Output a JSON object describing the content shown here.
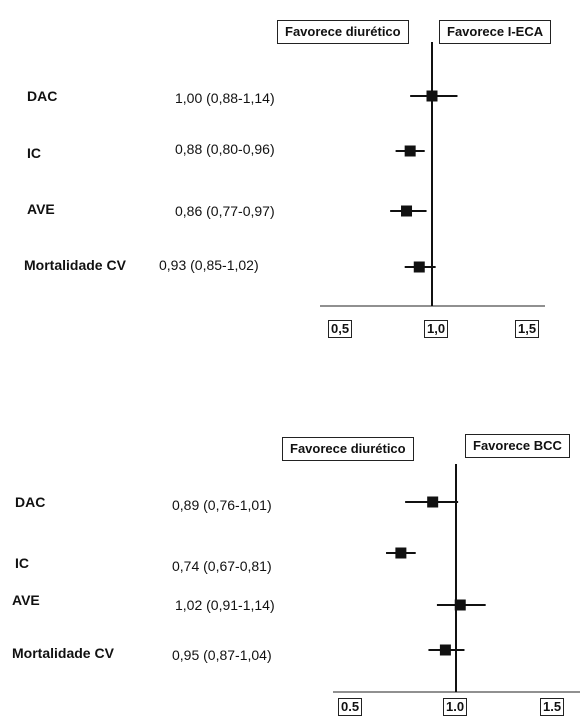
{
  "chart_data": [
    {
      "type": "forest",
      "left_label": "Favorece diurético",
      "right_label": "Favorece I-ECA",
      "xlim": [
        0.5,
        1.6
      ],
      "xticks": [
        "0,5",
        "1,0",
        "1,5"
      ],
      "tick_values": [
        0.5,
        1.0,
        1.5
      ],
      "rows": [
        {
          "label": "DAC",
          "text": "1,00 (0,88-1,14)",
          "est": 1.0,
          "lo": 0.88,
          "hi": 1.14
        },
        {
          "label": "IC",
          "text": "0,88 (0,80-0,96)",
          "est": 0.88,
          "lo": 0.8,
          "hi": 0.96
        },
        {
          "label": "AVE",
          "text": "0,86 (0,77-0,97)",
          "est": 0.86,
          "lo": 0.77,
          "hi": 0.97
        },
        {
          "label": "Mortalidade CV",
          "text": "0,93 (0,85-1,02)",
          "est": 0.93,
          "lo": 0.85,
          "hi": 1.02
        }
      ]
    },
    {
      "type": "forest",
      "left_label": "Favorece diurético",
      "right_label": "Favorece BCC",
      "xlim": [
        0.5,
        1.6
      ],
      "xticks": [
        "0.5",
        "1.0",
        "1.5"
      ],
      "tick_values": [
        0.5,
        1.0,
        1.5
      ],
      "rows": [
        {
          "label": "DAC",
          "text": "0,89 (0,76-1,01)",
          "est": 0.89,
          "lo": 0.76,
          "hi": 1.01
        },
        {
          "label": "IC",
          "text": "0,74 (0,67-0,81)",
          "est": 0.74,
          "lo": 0.67,
          "hi": 0.81
        },
        {
          "label": "AVE",
          "text": "1,02 (0,91-1,14)",
          "est": 1.02,
          "lo": 0.91,
          "hi": 1.14
        },
        {
          "label": "Mortalidade CV",
          "text": "0,95 (0,87-1,04)",
          "est": 0.95,
          "lo": 0.87,
          "hi": 1.04
        }
      ]
    }
  ]
}
